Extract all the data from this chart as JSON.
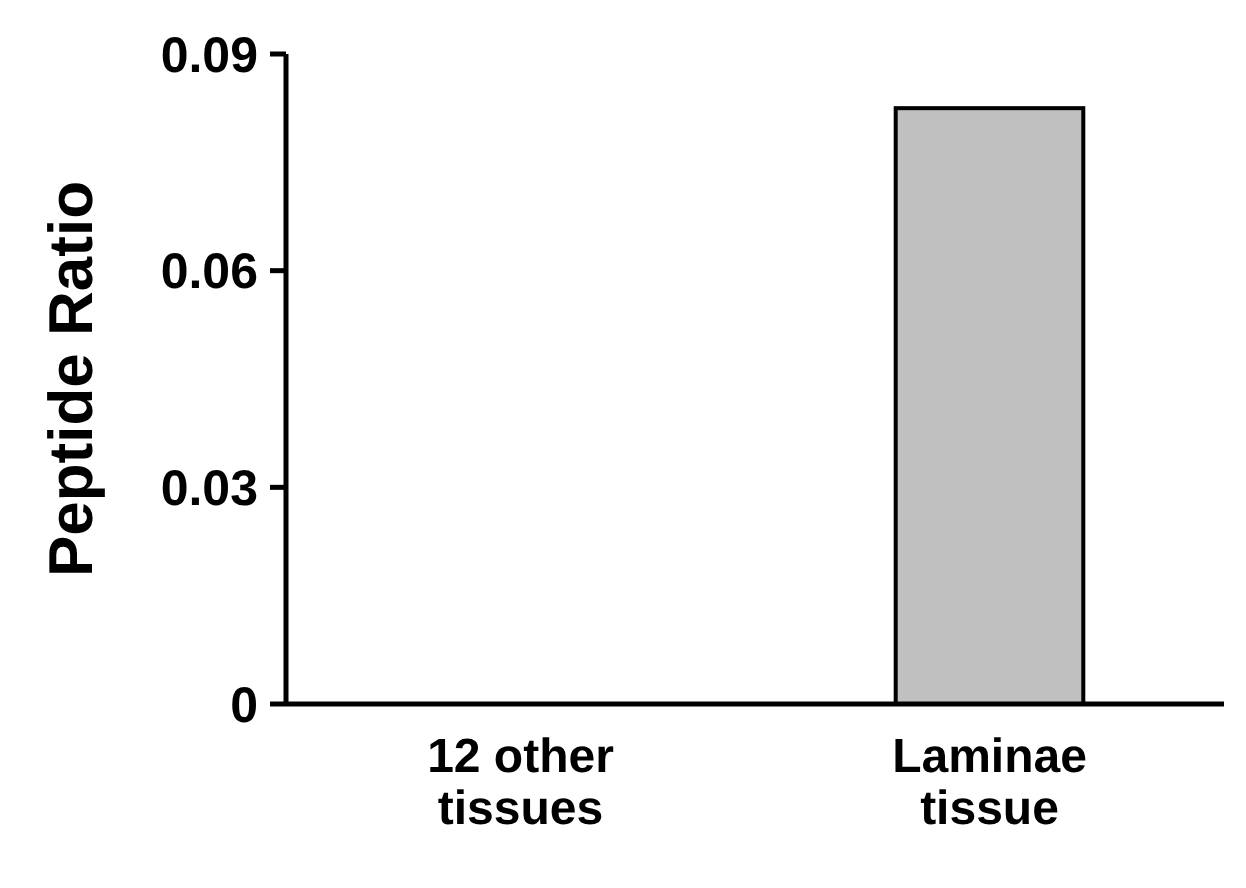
{
  "chart_data": {
    "type": "bar",
    "ylabel": "Peptide Ratio",
    "categories": [
      "12 other tissues",
      "Laminae tissue"
    ],
    "values": [
      0,
      0.0825
    ],
    "color": "#c0c0c0",
    "ylim": [
      0,
      0.09
    ],
    "yticks": [
      0,
      0.03,
      0.06,
      0.09
    ]
  }
}
